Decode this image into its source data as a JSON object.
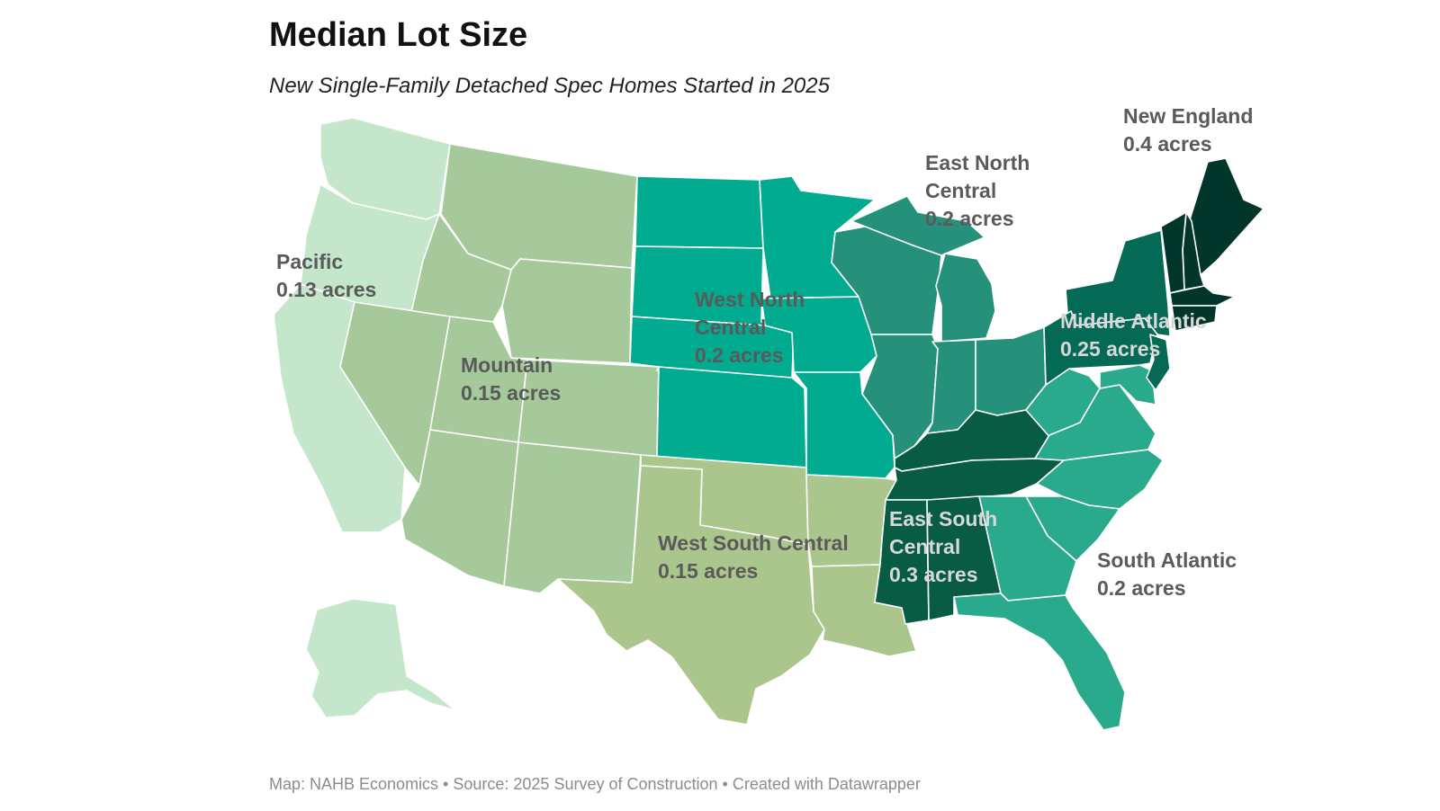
{
  "title": "Median Lot Size",
  "subtitle": "New Single-Family Detached Spec Homes Started in 2025",
  "footer": "Map: NAHB Economics • Source: 2025 Survey of Construction • Created with Datawrapper",
  "regions": [
    {
      "id": "pacific",
      "name": "Pacific",
      "value": "0.13 acres",
      "color": "#c4e6ca"
    },
    {
      "id": "mountain",
      "name": "Mountain",
      "value": "0.15 acres",
      "color": "#a5c99b"
    },
    {
      "id": "west-north-central",
      "name": "West North Central",
      "value": "0.2 acres",
      "color": "#00ab90"
    },
    {
      "id": "west-south-central",
      "name": "West South Central",
      "value": "0.15 acres",
      "color": "#abc68d"
    },
    {
      "id": "east-north-central",
      "name": "East North Central",
      "value": "0.2 acres",
      "color": "#26917a"
    },
    {
      "id": "east-south-central",
      "name": "East South Central",
      "value": "0.3 acres",
      "color": "#075c43"
    },
    {
      "id": "south-atlantic",
      "name": "South Atlantic",
      "value": "0.2 acres",
      "color": "#29aa8c"
    },
    {
      "id": "middle-atlantic",
      "name": "Middle Atlantic",
      "value": "0.25 acres",
      "color": "#056a55"
    },
    {
      "id": "new-england",
      "name": "New England",
      "value": "0.4 acres",
      "color": "#03362a"
    }
  ],
  "labels": {
    "pacific": {
      "name": "Pacific",
      "value": "0.13 acres"
    },
    "mountain": {
      "name": "Mountain",
      "value": "0.15 acres"
    },
    "west_north_central": {
      "name1": "West North",
      "name2": "Central",
      "value": "0.2 acres"
    },
    "west_south_central": {
      "name": "West South Central",
      "value": "0.15 acres"
    },
    "east_north_central": {
      "name1": "East North",
      "name2": "Central",
      "value": "0.2 acres"
    },
    "east_south_central": {
      "name1": "East South",
      "name2": "Central",
      "value": "0.3 acres"
    },
    "south_atlantic": {
      "name": "South Atlantic",
      "value": "0.2 acres"
    },
    "middle_atlantic": {
      "name": "Middle Atlantic",
      "value": "0.25 acres"
    },
    "new_england": {
      "name": "New England",
      "value": "0.4 acres"
    }
  }
}
